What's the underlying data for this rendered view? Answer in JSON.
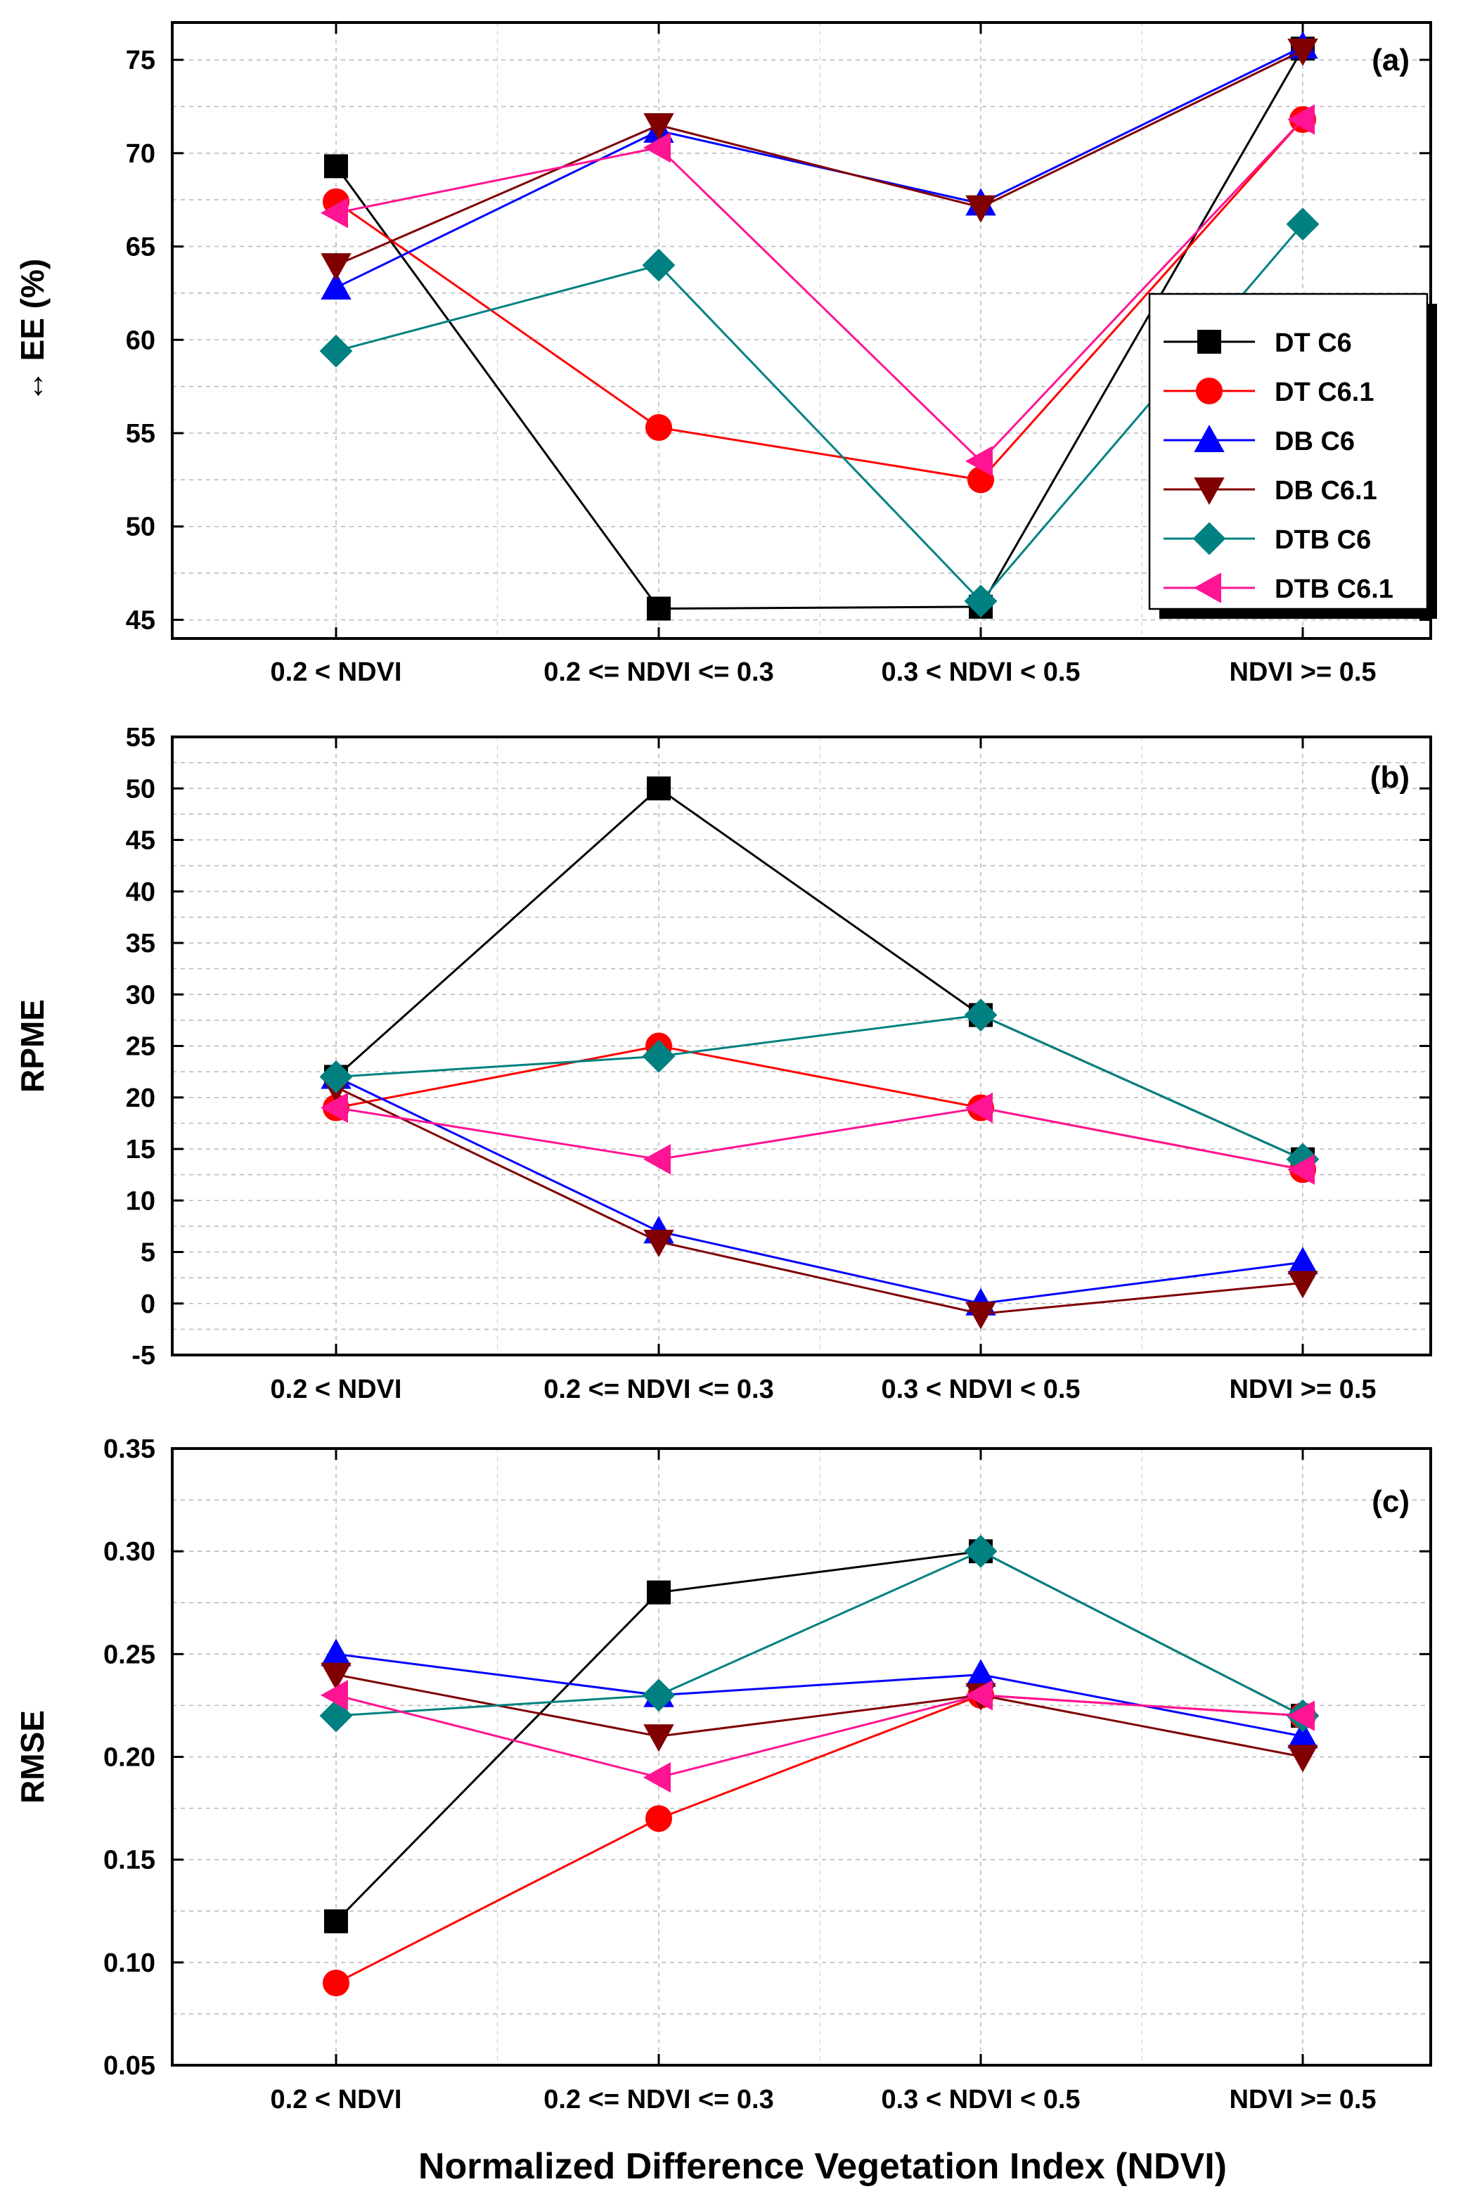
{
  "xlabel": "Normalized Difference Vegetation Index (NDVI)",
  "categories": [
    "0.2 < NDVI",
    "0.2 <= NDVI <= 0.3",
    "0.3 < NDVI < 0.5",
    "NDVI >= 0.5"
  ],
  "series_styles": [
    {
      "name": "DT C6",
      "color": "#000000",
      "marker": "square"
    },
    {
      "name": "DT C6.1",
      "color": "#ff0000",
      "marker": "circle"
    },
    {
      "name": "DB C6",
      "color": "#0000ff",
      "marker": "triangle-up"
    },
    {
      "name": "DB C6.1",
      "color": "#800000",
      "marker": "triangle-down"
    },
    {
      "name": "DTB C6",
      "color": "#008080",
      "marker": "diamond"
    },
    {
      "name": "DTB C6.1",
      "color": "#ff1493",
      "marker": "triangle-left"
    }
  ],
  "chart_data": [
    {
      "type": "line",
      "panel_label": "(a)",
      "ylabel": "↔ EE (%)",
      "ylim": [
        44,
        77
      ],
      "yticks": [
        45,
        50,
        55,
        60,
        65,
        70,
        75
      ],
      "ytick_labels": [
        "45",
        "50",
        "55",
        "60",
        "65",
        "70",
        "75"
      ],
      "legend": "right",
      "series": [
        {
          "name": "DT C6",
          "values": [
            69.3,
            45.6,
            45.7,
            75.6
          ]
        },
        {
          "name": "DT C6.1",
          "values": [
            67.4,
            55.3,
            52.5,
            71.8
          ]
        },
        {
          "name": "DB C6",
          "values": [
            62.8,
            71.2,
            67.3,
            75.7
          ]
        },
        {
          "name": "DB C6.1",
          "values": [
            64.0,
            71.5,
            67.1,
            75.5
          ]
        },
        {
          "name": "DTB C6",
          "values": [
            59.4,
            64.0,
            46.0,
            66.2
          ]
        },
        {
          "name": "DTB C6.1",
          "values": [
            66.8,
            70.3,
            53.5,
            71.8
          ]
        }
      ]
    },
    {
      "type": "line",
      "panel_label": "(b)",
      "ylabel": "RPME",
      "ylim": [
        -5,
        55
      ],
      "yticks": [
        -5,
        0,
        5,
        10,
        15,
        20,
        25,
        30,
        35,
        40,
        45,
        50,
        55
      ],
      "ytick_labels": [
        "-5",
        "0",
        "5",
        "10",
        "15",
        "20",
        "25",
        "30",
        "35",
        "40",
        "45",
        "50",
        "55"
      ],
      "series": [
        {
          "name": "DT C6",
          "values": [
            22,
            50,
            28,
            14
          ]
        },
        {
          "name": "DT C6.1",
          "values": [
            19,
            25,
            19,
            13
          ]
        },
        {
          "name": "DB C6",
          "values": [
            22,
            7,
            0,
            4
          ]
        },
        {
          "name": "DB C6.1",
          "values": [
            21,
            6,
            -1,
            2
          ]
        },
        {
          "name": "DTB C6",
          "values": [
            22,
            24,
            28,
            14
          ]
        },
        {
          "name": "DTB C6.1",
          "values": [
            19,
            14,
            19,
            13
          ]
        }
      ]
    },
    {
      "type": "line",
      "panel_label": "(c)",
      "ylabel": "RMSE",
      "ylim": [
        0.05,
        0.35
      ],
      "yticks": [
        0.05,
        0.1,
        0.15,
        0.2,
        0.25,
        0.3,
        0.35
      ],
      "ytick_labels": [
        "0.05",
        "0.10",
        "0.15",
        "0.20",
        "0.25",
        "0.30",
        "0.35"
      ],
      "series": [
        {
          "name": "DT C6",
          "values": [
            0.12,
            0.28,
            0.3,
            0.22
          ]
        },
        {
          "name": "DT C6.1",
          "values": [
            0.09,
            0.17,
            0.23,
            0.22
          ]
        },
        {
          "name": "DB C6",
          "values": [
            0.25,
            0.23,
            0.24,
            0.21
          ]
        },
        {
          "name": "DB C6.1",
          "values": [
            0.24,
            0.21,
            0.23,
            0.2
          ]
        },
        {
          "name": "DTB C6",
          "values": [
            0.22,
            0.23,
            0.3,
            0.22
          ]
        },
        {
          "name": "DTB C6.1",
          "values": [
            0.23,
            0.19,
            0.23,
            0.22
          ]
        }
      ]
    }
  ]
}
